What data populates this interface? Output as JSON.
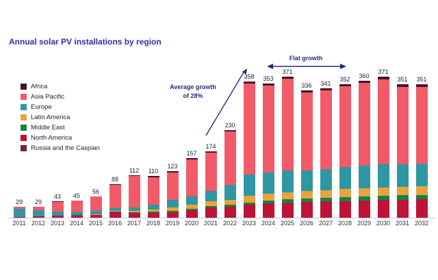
{
  "title": "Annual solar PV installations by region",
  "chart_data": {
    "type": "bar",
    "subtype": "stacked",
    "title": "Annual solar PV installations by region",
    "categories": [
      "2011",
      "2012",
      "2013",
      "2014",
      "2015",
      "2016",
      "2017",
      "2018",
      "2019",
      "2020",
      "2021",
      "2022",
      "2023",
      "2024",
      "2025",
      "2026",
      "2027",
      "2028",
      "2029",
      "2030",
      "2031",
      "2032"
    ],
    "totals": [
      29,
      29,
      43,
      45,
      56,
      88,
      112,
      110,
      123,
      157,
      174,
      230,
      358,
      353,
      371,
      336,
      341,
      352,
      360,
      371,
      351,
      351
    ],
    "stack_order": [
      "North America",
      "Middle East",
      "Latin America",
      "Europe",
      "Asia Pacific",
      "Africa",
      "Russia and the Caspian"
    ],
    "legend": [
      {
        "name": "Africa",
        "color": "#46122c"
      },
      {
        "name": "Asia Pacific",
        "color": "#f15b68"
      },
      {
        "name": "Europe",
        "color": "#2f96a3"
      },
      {
        "name": "Latin America",
        "color": "#e8a33c"
      },
      {
        "name": "Middle East",
        "color": "#108349"
      },
      {
        "name": "North America",
        "color": "#bf1238"
      },
      {
        "name": "Russia and the Caspian",
        "color": "#77203f"
      }
    ],
    "series": [
      {
        "name": "North America",
        "values": [
          2,
          3.3,
          4.8,
          6.2,
          7.3,
          14.8,
          12.8,
          13,
          14.5,
          20,
          26.5,
          29.5,
          34.5,
          37.5,
          40,
          41.5,
          42.5,
          44,
          45.5,
          47,
          47.5,
          48
        ]
      },
      {
        "name": "Middle East",
        "values": [
          0.2,
          0.3,
          0.4,
          0.5,
          0.6,
          0.8,
          1.2,
          2.5,
          3.5,
          4,
          4.5,
          5,
          6,
          7,
          8,
          9,
          9.5,
          10,
          10.5,
          11,
          11.5,
          12
        ]
      },
      {
        "name": "Latin America",
        "values": [
          0.5,
          0.5,
          0.8,
          1.2,
          2,
          2.8,
          4.5,
          7,
          9,
          9.5,
          11.5,
          13,
          17,
          18,
          19,
          19,
          20,
          21,
          21.5,
          22,
          22,
          22.5
        ]
      },
      {
        "name": "Europe",
        "values": [
          20,
          16,
          10,
          7,
          8,
          7,
          9,
          12,
          19,
          22,
          27,
          39,
          56,
          56,
          58,
          55,
          56,
          58,
          59,
          61,
          60,
          60
        ]
      },
      {
        "name": "Asia Pacific",
        "values": [
          5.8,
          8.4,
          26.3,
          29.4,
          37.3,
          61.6,
          82.5,
          72.5,
          73.5,
          98,
          101,
          140,
          240,
          230,
          241,
          206,
          207.5,
          213,
          217.5,
          223.5,
          203.5,
          201.5
        ]
      },
      {
        "name": "Africa",
        "values": [
          0.3,
          0.3,
          0.5,
          0.5,
          0.6,
          0.8,
          1.5,
          2.5,
          3,
          3,
          3,
          3,
          4,
          4,
          4.5,
          5,
          5,
          5.5,
          5.5,
          6,
          6,
          6
        ]
      },
      {
        "name": "Russia and the Caspian",
        "values": [
          0.2,
          0.2,
          0.2,
          0.2,
          0.2,
          0.2,
          0.5,
          0.5,
          0.5,
          0.5,
          0.5,
          0.5,
          0.5,
          0.5,
          0.5,
          0.5,
          0.5,
          0.5,
          0.5,
          0.5,
          0.5,
          0.5
        ]
      }
    ],
    "xlabel": "",
    "ylabel": "",
    "axis": {
      "y_axis_visible": false,
      "gridlines": false,
      "x_ticks": [
        "2011",
        "2012",
        "2013",
        "2014",
        "2015",
        "2016",
        "2017",
        "2018",
        "2019",
        "2020",
        "2021",
        "2022",
        "2023",
        "2024",
        "2025",
        "2026",
        "2027",
        "2028",
        "2029",
        "2030",
        "2031",
        "2032"
      ]
    },
    "annotations": {
      "average_growth": {
        "line1": "Average growth",
        "line2": "of 28%",
        "arrow": "diagonal-up",
        "points_to": "2023"
      },
      "flat_growth": {
        "label": "Flat growth",
        "arrow": "double-headed-horizontal",
        "span": [
          "2024",
          "2028"
        ]
      }
    }
  },
  "colors": {
    "title_text": "#2b2fa8",
    "annotation_text": "#1f2d7a",
    "axis_line": "#c4c4d2",
    "value_label_text": "#1a1a2e"
  }
}
